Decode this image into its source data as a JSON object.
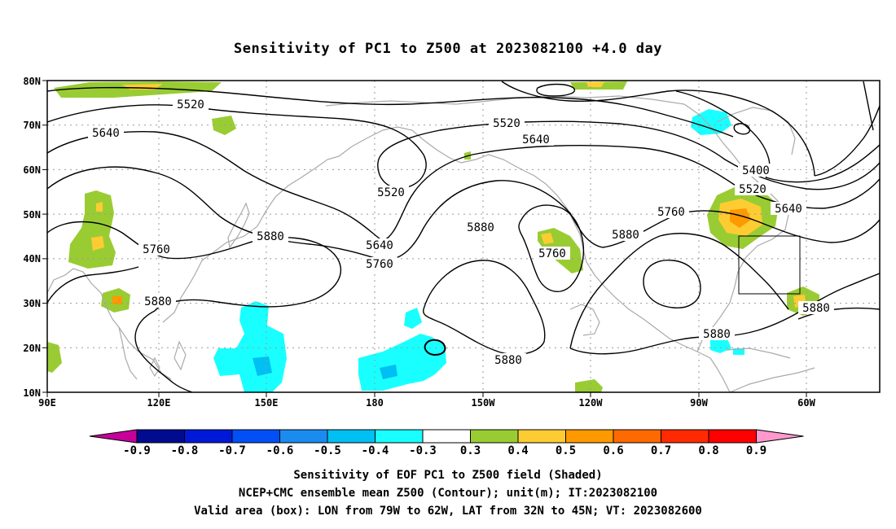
{
  "title": "Sensitivity of PC1 to Z500 at 2023082100 +4.0 day",
  "map": {
    "lon_range_deg_east": [
      90,
      315
    ],
    "lat_range_deg": [
      10,
      80
    ],
    "lon_ticks": [
      "90E",
      "120E",
      "150E",
      "180",
      "150W",
      "120W",
      "90W",
      "60W"
    ],
    "lat_ticks": [
      "80N",
      "70N",
      "60N",
      "50N",
      "40N",
      "30N",
      "20N",
      "10N"
    ],
    "grid": "dotted",
    "valid_area_box": {
      "lon": [
        "79W",
        "62W"
      ],
      "lat": [
        "32N",
        "45N"
      ]
    }
  },
  "contours": {
    "variable": "Z500",
    "unit": "m",
    "labels": [
      "5520",
      "5640",
      "5520",
      "5640",
      "5520",
      "5760",
      "5880",
      "5640",
      "5760",
      "5880",
      "5880",
      "5760",
      "5880",
      "5760",
      "5400",
      "5520",
      "5640",
      "5880",
      "5880",
      "5880"
    ]
  },
  "colorbar": {
    "labels": [
      "-0.9",
      "-0.8",
      "-0.7",
      "-0.6",
      "-0.5",
      "-0.4",
      "-0.3",
      "0.3",
      "0.4",
      "0.5",
      "0.6",
      "0.7",
      "0.8",
      "0.9"
    ],
    "colors": [
      "#c8009a",
      "#000b8f",
      "#0018d8",
      "#0050f5",
      "#1a8cf0",
      "#00bff2",
      "#19ffff",
      "#ffffff",
      "#99cc33",
      "#fdcc33",
      "#ff9900",
      "#ff6a00",
      "#ff2a00",
      "#ff0000",
      "#ff99cc"
    ]
  },
  "caption": {
    "line1": "Sensitivity of EOF PC1 to Z500 field (Shaded)",
    "line2": "NCEP+CMC ensemble mean Z500 (Contour); unit(m); IT:2023082100",
    "line3": "Valid area (box): LON from 79W to 62W, LAT from 32N to 45N; VT: 2023082600"
  }
}
